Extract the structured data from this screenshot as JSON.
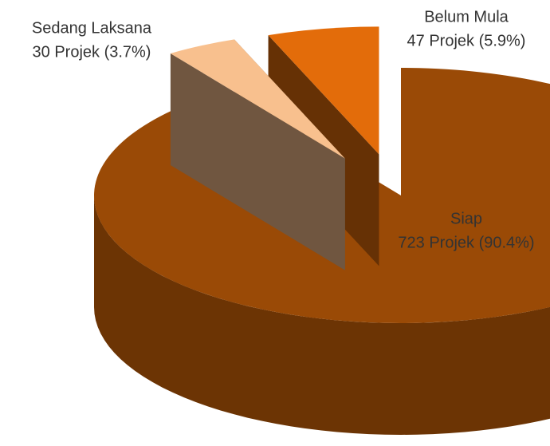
{
  "chart_data": {
    "type": "pie3d",
    "categories": [
      "Belum Mula",
      "Sedang Laksana",
      "Siap"
    ],
    "values": [
      47,
      30,
      723
    ],
    "value_labels": [
      "47 Projek (5.9%)",
      "30 Projek  (3.7%)",
      "723 Projek (90.4%)"
    ],
    "colors": [
      "#e36c0a",
      "#f8c08e",
      "#9a4a06"
    ],
    "exploded": [
      true,
      true,
      false
    ]
  }
}
